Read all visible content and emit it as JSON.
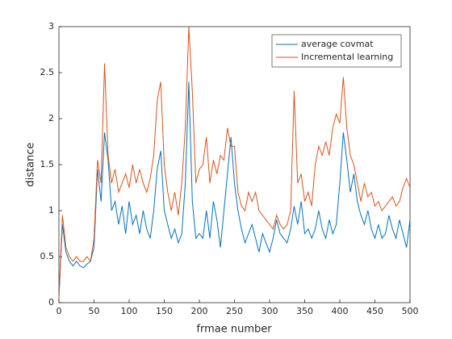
{
  "chart_data": {
    "type": "line",
    "xlabel": "frmae number",
    "ylabel": "distance",
    "x": [
      0,
      5,
      10,
      15,
      20,
      25,
      30,
      35,
      40,
      45,
      50,
      55,
      60,
      65,
      70,
      75,
      80,
      85,
      90,
      95,
      100,
      105,
      110,
      115,
      120,
      125,
      130,
      135,
      140,
      145,
      150,
      155,
      160,
      165,
      170,
      175,
      180,
      185,
      190,
      195,
      200,
      205,
      210,
      215,
      220,
      225,
      230,
      235,
      240,
      245,
      250,
      255,
      260,
      265,
      270,
      275,
      280,
      285,
      290,
      295,
      300,
      305,
      310,
      315,
      320,
      325,
      330,
      335,
      340,
      345,
      350,
      355,
      360,
      365,
      370,
      375,
      380,
      385,
      390,
      395,
      400,
      405,
      410,
      415,
      420,
      425,
      430,
      435,
      440,
      445,
      450,
      455,
      460,
      465,
      470,
      475,
      480,
      485,
      490,
      495,
      500
    ],
    "series": [
      {
        "name": "average covmat",
        "color": "#0072bd",
        "values": [
          0.05,
          0.85,
          0.55,
          0.45,
          0.4,
          0.45,
          0.4,
          0.38,
          0.42,
          0.45,
          0.6,
          1.45,
          1.1,
          1.85,
          1.55,
          1.0,
          1.1,
          0.85,
          1.05,
          0.75,
          1.1,
          0.85,
          0.95,
          0.75,
          1.0,
          0.8,
          0.7,
          1.0,
          1.45,
          1.65,
          1.0,
          0.85,
          0.7,
          0.8,
          0.65,
          0.75,
          1.3,
          2.4,
          1.1,
          0.7,
          0.75,
          0.7,
          1.0,
          0.7,
          1.1,
          0.9,
          0.6,
          1.0,
          1.4,
          1.8,
          1.3,
          1.0,
          0.8,
          0.65,
          0.75,
          0.85,
          0.7,
          0.55,
          0.75,
          0.65,
          0.55,
          0.7,
          0.9,
          0.75,
          0.7,
          0.65,
          0.8,
          1.05,
          0.85,
          1.1,
          0.75,
          0.8,
          0.7,
          0.8,
          1.0,
          0.8,
          0.7,
          0.9,
          0.75,
          0.85,
          1.3,
          1.85,
          1.55,
          1.2,
          1.4,
          1.1,
          0.95,
          0.85,
          1.0,
          0.8,
          0.7,
          0.85,
          0.7,
          0.75,
          0.95,
          0.8,
          0.7,
          0.9,
          0.75,
          0.6,
          0.9
        ]
      },
      {
        "name": "Incremental learning",
        "color": "#d95319",
        "values": [
          0.05,
          0.95,
          0.6,
          0.5,
          0.45,
          0.5,
          0.45,
          0.45,
          0.5,
          0.45,
          0.7,
          1.55,
          1.3,
          2.6,
          1.6,
          1.3,
          1.45,
          1.2,
          1.3,
          1.4,
          1.25,
          1.5,
          1.3,
          1.45,
          1.3,
          1.2,
          1.35,
          1.6,
          2.2,
          2.4,
          1.5,
          1.2,
          1.0,
          1.2,
          0.95,
          1.3,
          1.9,
          3.0,
          2.3,
          1.3,
          1.45,
          1.5,
          1.8,
          1.3,
          1.55,
          1.4,
          1.6,
          1.55,
          1.9,
          1.7,
          1.7,
          1.2,
          1.05,
          1.0,
          1.2,
          1.1,
          1.2,
          1.0,
          0.95,
          0.9,
          0.85,
          0.8,
          0.95,
          0.85,
          0.8,
          0.85,
          1.0,
          2.3,
          1.3,
          1.4,
          1.1,
          1.2,
          1.05,
          1.5,
          1.7,
          1.6,
          1.75,
          1.6,
          1.9,
          2.05,
          1.95,
          2.45,
          1.9,
          1.6,
          1.5,
          1.3,
          1.1,
          1.3,
          1.15,
          1.2,
          1.05,
          1.1,
          1.0,
          1.05,
          1.1,
          1.15,
          1.05,
          1.1,
          1.25,
          1.35,
          1.25
        ]
      }
    ],
    "xlim": [
      0,
      500
    ],
    "xticks": [
      0,
      50,
      100,
      150,
      200,
      250,
      300,
      350,
      400,
      450,
      500
    ],
    "ylim": [
      0,
      3
    ],
    "yticks": [
      0,
      0.5,
      1,
      1.5,
      2,
      2.5,
      3
    ],
    "grid": false,
    "legend": "northeast"
  }
}
